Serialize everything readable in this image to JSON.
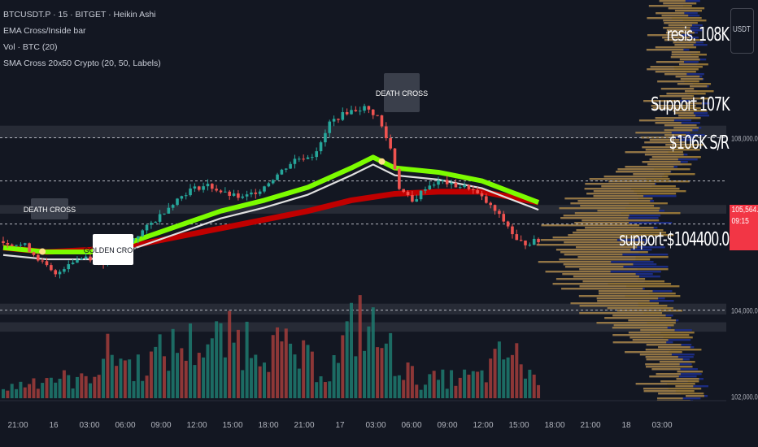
{
  "header": {
    "symbol_line": "BTCUSDT.P · 15 · BITGET · Heikin Ashi",
    "indicators": [
      "EMA Cross/Inside bar",
      "Vol · BTC (20)",
      "SMA Cross 20x50 Crypto (20, 50, Labels)"
    ]
  },
  "price_axis": {
    "currency_button": "USDT",
    "current_price": "105,564.1",
    "countdown": "09:15"
  },
  "annotations": {
    "resistance": "resis. 108K",
    "support_107": "Support 107K",
    "sr_106": "$106K S/R",
    "support_104": "support-$104400.0",
    "death_cross_labels": [
      "DEATH CROSS",
      "DEATH CROSS"
    ],
    "golden_cross_label": "GOLDEN CROSS"
  },
  "colors": {
    "background": "#131722",
    "up_candle": "#26a69a",
    "down_candle": "#ef5350",
    "ema_fast": "#7cfc00",
    "sma_slow": "#c00000",
    "price_tag": "#f23645",
    "profile_buy": "#1e2f8a",
    "profile_sell": "#a6813a"
  },
  "chart_data": {
    "type": "candlestick",
    "style": "Heikin Ashi",
    "timeframe": "15",
    "x_ticks": [
      "21:00",
      "16",
      "03:00",
      "06:00",
      "09:00",
      "12:00",
      "15:00",
      "18:00",
      "21:00",
      "17",
      "03:00",
      "06:00",
      "09:00",
      "12:00",
      "15:00",
      "18:00",
      "21:00",
      "18",
      "03:00"
    ],
    "y_ticks": [
      "108,000.0",
      "106,000.0",
      "104,000.0",
      "102,000.0"
    ],
    "ylim": [
      101900,
      109500
    ],
    "grid": true,
    "horizontal_levels": [
      108000,
      107000,
      106000,
      104000
    ],
    "price_path": [
      [
        0,
        105600
      ],
      [
        6,
        105500
      ],
      [
        10,
        105100
      ],
      [
        13,
        104800
      ],
      [
        16,
        105100
      ],
      [
        20,
        105250
      ],
      [
        24,
        105100
      ],
      [
        28,
        105450
      ],
      [
        32,
        105750
      ],
      [
        36,
        106100
      ],
      [
        40,
        106500
      ],
      [
        44,
        106800
      ],
      [
        48,
        106900
      ],
      [
        52,
        106700
      ],
      [
        56,
        106600
      ],
      [
        60,
        106800
      ],
      [
        64,
        107150
      ],
      [
        68,
        107500
      ],
      [
        72,
        107600
      ],
      [
        74,
        107850
      ],
      [
        76,
        108350
      ],
      [
        80,
        108600
      ],
      [
        84,
        108700
      ],
      [
        87,
        108500
      ],
      [
        90,
        107750
      ],
      [
        92,
        106850
      ],
      [
        95,
        106500
      ],
      [
        98,
        106850
      ],
      [
        100,
        106950
      ],
      [
        102,
        107000
      ],
      [
        104,
        106900
      ],
      [
        108,
        106850
      ],
      [
        111,
        106600
      ],
      [
        114,
        106300
      ],
      [
        117,
        105950
      ],
      [
        119,
        105600
      ],
      [
        121,
        105550
      ],
      [
        123,
        105600
      ]
    ],
    "ema_fast_path": [
      [
        0,
        105450
      ],
      [
        10,
        105350
      ],
      [
        20,
        105350
      ],
      [
        30,
        105600
      ],
      [
        40,
        105950
      ],
      [
        50,
        106300
      ],
      [
        60,
        106550
      ],
      [
        70,
        106850
      ],
      [
        80,
        107300
      ],
      [
        85,
        107550
      ],
      [
        90,
        107300
      ],
      [
        100,
        107200
      ],
      [
        110,
        107000
      ],
      [
        123,
        106500
      ]
    ],
    "sma_slow_path": [
      [
        0,
        105450
      ],
      [
        10,
        105350
      ],
      [
        20,
        105400
      ],
      [
        30,
        105500
      ],
      [
        40,
        105700
      ],
      [
        50,
        105900
      ],
      [
        60,
        106100
      ],
      [
        70,
        106300
      ],
      [
        80,
        106550
      ],
      [
        90,
        106700
      ],
      [
        100,
        106750
      ],
      [
        110,
        106750
      ],
      [
        123,
        106500
      ]
    ],
    "volume_peaks": [
      [
        0,
        0.1
      ],
      [
        10,
        0.25
      ],
      [
        18,
        0.2
      ],
      [
        25,
        0.55
      ],
      [
        30,
        0.35
      ],
      [
        40,
        0.6
      ],
      [
        58,
        0.7
      ],
      [
        75,
        0.3
      ],
      [
        82,
        0.95
      ],
      [
        84,
        0.8
      ],
      [
        95,
        0.2
      ],
      [
        110,
        0.25
      ],
      [
        116,
        0.55
      ],
      [
        123,
        0.2
      ]
    ],
    "cross_signals": [
      {
        "x": 9,
        "type": "death"
      },
      {
        "x": 27,
        "type": "golden"
      },
      {
        "x": 87,
        "type": "death"
      }
    ],
    "volume_profile": "horizontal histogram on the right side"
  }
}
